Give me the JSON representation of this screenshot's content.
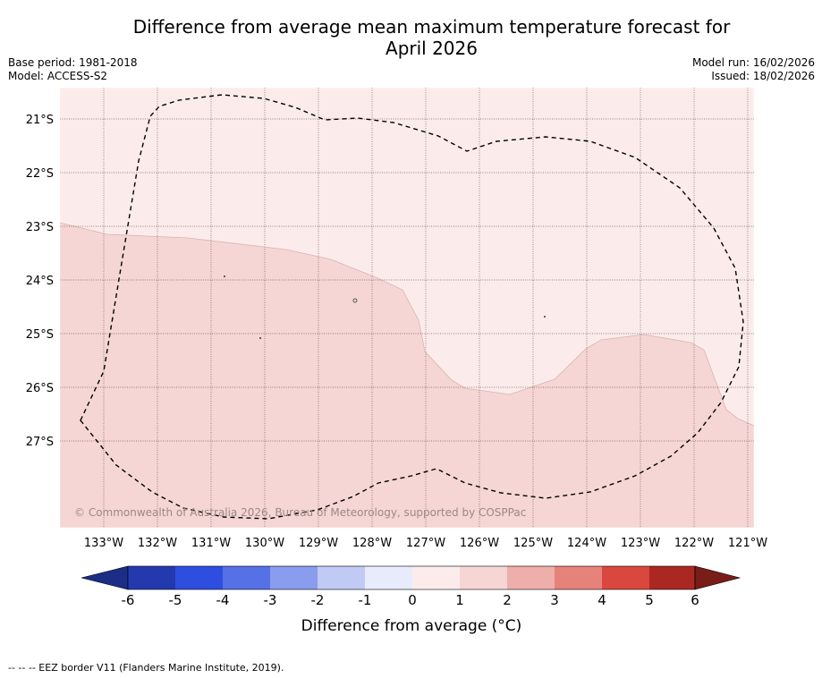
{
  "header": {
    "title_line1": "Difference from average mean maximum temperature forecast for",
    "title_line2": "April 2026",
    "base_period": "Base period: 1981-2018",
    "model": "Model: ACCESS-S2",
    "model_run": "Model run: 16/02/2026",
    "issued": "Issued: 18/02/2026"
  },
  "map": {
    "lat_labels": [
      "21°S",
      "22°S",
      "23°S",
      "24°S",
      "25°S",
      "26°S",
      "27°S"
    ],
    "lon_labels": [
      "133°W",
      "132°W",
      "131°W",
      "130°W",
      "129°W",
      "128°W",
      "127°W",
      "126°W",
      "125°W",
      "124°W",
      "123°W",
      "122°W",
      "121°W"
    ],
    "copyright": "© Commonwealth of Australia 2026, Bureau of Meteorology, supported by COSPPac",
    "fill_colors": {
      "band_0_1": "#fbeceb",
      "band_1_2": "#f5d6d4"
    },
    "border_style": "dashed"
  },
  "colorbar": {
    "ticks": [
      "-6",
      "-5",
      "-4",
      "-3",
      "-2",
      "-1",
      "0",
      "1",
      "2",
      "3",
      "4",
      "5",
      "6"
    ],
    "colors": [
      "#2339ad",
      "#2e4ee0",
      "#5670e6",
      "#8a9ced",
      "#c1c9f5",
      "#e8ebfb",
      "#fbeceb",
      "#f5d6d4",
      "#eeaea9",
      "#e5837b",
      "#d9473e",
      "#ab2822"
    ],
    "under_color": "#1b2d85",
    "over_color": "#7a1c18",
    "label": "Difference from average (°C)"
  },
  "legend": {
    "eez": "--  --  -- EEZ border V11 (Flanders Marine Institute, 2019)."
  }
}
